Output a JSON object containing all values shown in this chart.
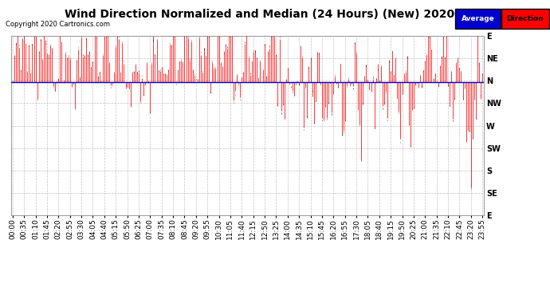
{
  "title": "Wind Direction Normalized and Median (24 Hours) (New) 20200111",
  "copyright": "Copyright 2020 Cartronics.com",
  "background_color": "#ffffff",
  "plot_bg_color": "#ffffff",
  "grid_color": "#aaaaaa",
  "ytick_labels": [
    "E",
    "NE",
    "N",
    "NW",
    "W",
    "SW",
    "S",
    "SE",
    "E"
  ],
  "ytick_values": [
    360,
    315,
    270,
    225,
    180,
    135,
    90,
    45,
    0
  ],
  "avg_direction_value": 268,
  "bar_color": "#ff0000",
  "dark_bar_color": "#111111",
  "avg_line_color": "#0000cc",
  "legend_avg_bg": "#0000cc",
  "legend_dir_bg": "#ff0000",
  "title_fontsize": 10,
  "tick_fontsize": 7,
  "num_points": 288,
  "seed": 99,
  "time_labels": [
    "00:00",
    "00:35",
    "01:10",
    "01:45",
    "02:20",
    "02:55",
    "03:30",
    "04:05",
    "04:40",
    "05:15",
    "05:50",
    "06:25",
    "07:00",
    "07:35",
    "08:10",
    "08:45",
    "09:20",
    "09:55",
    "10:30",
    "11:05",
    "11:40",
    "12:15",
    "12:50",
    "13:25",
    "14:00",
    "14:35",
    "15:10",
    "15:45",
    "16:20",
    "16:55",
    "17:30",
    "18:05",
    "18:40",
    "19:15",
    "19:50",
    "20:25",
    "21:00",
    "21:35",
    "22:10",
    "22:45",
    "23:20",
    "23:55"
  ]
}
